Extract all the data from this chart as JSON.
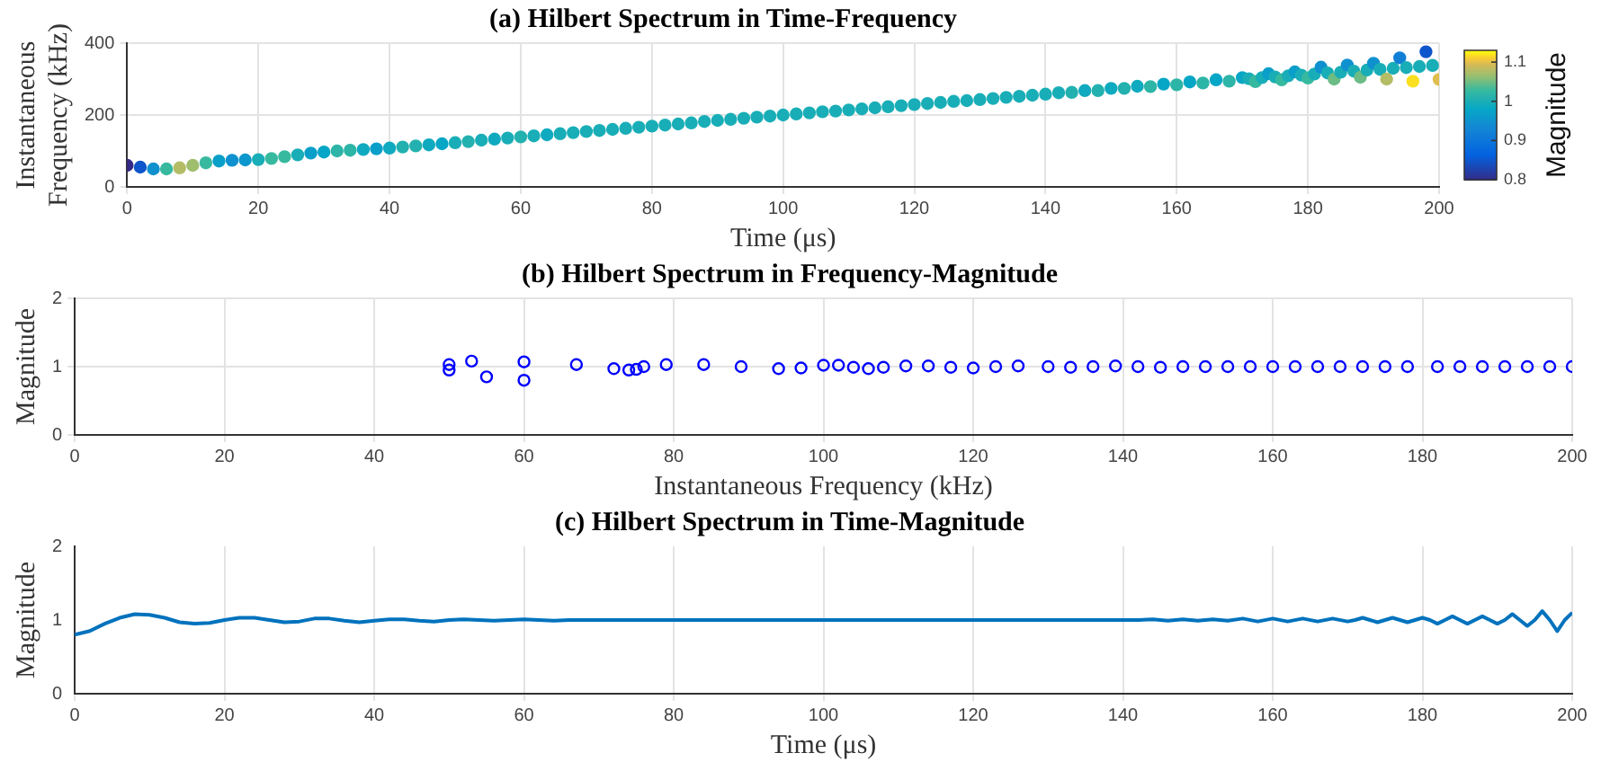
{
  "chart_data": [
    {
      "type": "scatter",
      "title": "(a) Hilbert Spectrum in Time-Frequency",
      "xlabel": "Time (μs)",
      "ylabel": "Instantaneous Frequency (kHz)",
      "clabel": "Magnitude",
      "marker": "circle",
      "grid": true,
      "xlim": [
        0,
        200
      ],
      "xticks": [
        0,
        20,
        40,
        60,
        80,
        100,
        120,
        140,
        160,
        180,
        200
      ],
      "ylim": [
        0,
        400
      ],
      "yticks": [
        0,
        200,
        400
      ],
      "clim": [
        0.8,
        1.13
      ],
      "cticks": [
        0.8,
        0.9,
        1,
        1.1
      ],
      "x": [
        0,
        2,
        4,
        6,
        8,
        10,
        12,
        14,
        16,
        18,
        20,
        22,
        24,
        26,
        28,
        30,
        32,
        34,
        36,
        38,
        40,
        42,
        44,
        46,
        48,
        50,
        52,
        54,
        56,
        58,
        60,
        62,
        64,
        66,
        68,
        70,
        72,
        74,
        76,
        78,
        80,
        82,
        84,
        86,
        88,
        90,
        92,
        94,
        96,
        98,
        100,
        102,
        104,
        106,
        108,
        110,
        112,
        114,
        116,
        118,
        120,
        122,
        124,
        126,
        128,
        130,
        132,
        134,
        136,
        138,
        140,
        142,
        144,
        146,
        148,
        150,
        152,
        154,
        156,
        158,
        160,
        162,
        164,
        166,
        168,
        170,
        171,
        172,
        173,
        174,
        175,
        176,
        177,
        178,
        179,
        180,
        181,
        182,
        183,
        184,
        185,
        186,
        187,
        188,
        189,
        190,
        191,
        192,
        193,
        194,
        195,
        196,
        197,
        198,
        199,
        200
      ],
      "values": [
        60,
        55,
        50,
        50,
        53,
        60,
        67,
        72,
        74,
        75,
        76,
        79,
        84,
        89,
        94,
        97,
        100,
        102,
        104,
        106,
        108,
        111,
        114,
        117,
        120,
        123,
        126,
        130,
        133,
        136,
        139,
        142,
        145,
        148,
        151,
        154,
        157,
        160,
        163,
        166,
        169,
        172,
        175,
        178,
        182,
        185,
        188,
        191,
        194,
        197,
        200,
        203,
        206,
        209,
        211,
        214,
        217,
        220,
        223,
        226,
        229,
        232,
        235,
        238,
        240,
        243,
        246,
        249,
        252,
        255,
        258,
        262,
        263,
        268,
        268,
        274,
        274,
        280,
        279,
        286,
        284,
        292,
        289,
        298,
        294,
        304,
        301,
        293,
        304,
        315,
        306,
        298,
        309,
        320,
        311,
        303,
        314,
        333,
        317,
        300,
        319,
        339,
        322,
        305,
        325,
        344,
        327,
        300,
        330,
        359,
        332,
        294,
        335,
        376,
        338,
        299
      ],
      "cvalues": [
        0.8,
        0.85,
        0.95,
        1.03,
        1.08,
        1.07,
        1.03,
        0.97,
        0.95,
        0.96,
        1.0,
        1.03,
        1.03,
        1.0,
        0.97,
        0.98,
        1.02,
        1.02,
        0.99,
        0.97,
        0.99,
        1.01,
        1.01,
        0.99,
        0.98,
        1.0,
        1.01,
        1.0,
        0.99,
        1.0,
        1.01,
        1.0,
        0.99,
        1.0,
        1.0,
        1.0,
        1.0,
        1.0,
        1.0,
        1.0,
        1.0,
        1.0,
        1.0,
        1.0,
        1.0,
        1.0,
        1.0,
        1.0,
        1.0,
        1.0,
        1.0,
        1.0,
        1.0,
        1.0,
        1.0,
        1.0,
        1.0,
        1.0,
        1.0,
        1.0,
        1.0,
        1.0,
        1.0,
        1.0,
        1.0,
        1.0,
        1.0,
        1.0,
        1.0,
        1.0,
        1.0,
        1.0,
        1.01,
        0.99,
        1.01,
        0.99,
        1.01,
        0.99,
        1.02,
        0.98,
        1.02,
        0.98,
        1.02,
        0.98,
        1.02,
        0.98,
        1.0,
        1.03,
        1.0,
        0.97,
        1.0,
        1.03,
        1.0,
        0.97,
        1.0,
        1.03,
        1.0,
        0.95,
        1.0,
        1.05,
        1.0,
        0.95,
        1.0,
        1.05,
        1.0,
        0.95,
        1.0,
        1.08,
        1.0,
        0.92,
        1.0,
        1.12,
        1.0,
        0.85,
        1.0,
        1.1
      ]
    },
    {
      "type": "scatter",
      "title": "(b) Hilbert Spectrum in Frequency-Magnitude",
      "xlabel": "Instantaneous Frequency (kHz)",
      "ylabel": "Magnitude",
      "marker": "circle",
      "grid": true,
      "color": "#0000ff",
      "xlim": [
        0,
        200
      ],
      "xticks": [
        0,
        20,
        40,
        60,
        80,
        100,
        120,
        140,
        160,
        180,
        200
      ],
      "ylim": [
        0,
        2
      ],
      "yticks": [
        0,
        1,
        2
      ],
      "x": [
        60,
        55,
        50,
        50,
        53,
        60,
        67,
        72,
        74,
        75,
        76,
        79,
        84,
        89,
        94,
        97,
        100,
        102,
        104,
        106,
        108,
        111,
        114,
        117,
        120,
        123,
        126,
        130,
        133,
        136,
        139,
        142,
        145,
        148,
        151,
        154,
        157,
        160,
        163,
        166,
        169,
        172,
        175,
        178,
        182,
        185,
        188,
        191,
        194,
        197,
        200
      ],
      "values": [
        0.8,
        0.85,
        0.95,
        1.03,
        1.08,
        1.07,
        1.03,
        0.97,
        0.95,
        0.96,
        1.0,
        1.03,
        1.03,
        1.0,
        0.97,
        0.98,
        1.02,
        1.02,
        0.99,
        0.97,
        0.99,
        1.01,
        1.01,
        0.99,
        0.98,
        1.0,
        1.01,
        1.0,
        0.99,
        1.0,
        1.01,
        1.0,
        0.99,
        1.0,
        1.0,
        1.0,
        1.0,
        1.0,
        1.0,
        1.0,
        1.0,
        1.0,
        1.0,
        1.0,
        1.0,
        1.0,
        1.0,
        1.0,
        1.0,
        1.0,
        1.0
      ]
    },
    {
      "type": "line",
      "title": "(c) Hilbert Spectrum in Time-Magnitude",
      "xlabel": "Time (μs)",
      "ylabel": "Magnitude",
      "marker": "none",
      "grid": "x",
      "color": "#0072bd",
      "xlim": [
        0,
        200
      ],
      "xticks": [
        0,
        20,
        40,
        60,
        80,
        100,
        120,
        140,
        160,
        180,
        200
      ],
      "ylim": [
        0,
        2
      ],
      "yticks": [
        0,
        1,
        2
      ],
      "x": [
        0,
        2,
        4,
        6,
        8,
        10,
        12,
        14,
        16,
        18,
        20,
        22,
        24,
        26,
        28,
        30,
        32,
        34,
        36,
        38,
        40,
        42,
        44,
        46,
        48,
        50,
        52,
        54,
        56,
        58,
        60,
        62,
        64,
        66,
        68,
        70,
        72,
        74,
        76,
        78,
        80,
        82,
        84,
        86,
        88,
        90,
        92,
        94,
        96,
        98,
        100,
        102,
        104,
        106,
        108,
        110,
        112,
        114,
        116,
        118,
        120,
        122,
        124,
        126,
        128,
        130,
        132,
        134,
        136,
        138,
        140,
        142,
        144,
        146,
        148,
        150,
        152,
        154,
        156,
        158,
        160,
        162,
        164,
        166,
        168,
        170,
        171,
        172,
        173,
        174,
        175,
        176,
        177,
        178,
        179,
        180,
        181,
        182,
        183,
        184,
        185,
        186,
        187,
        188,
        189,
        190,
        191,
        192,
        193,
        194,
        195,
        196,
        197,
        198,
        199,
        200
      ],
      "values": [
        0.8,
        0.85,
        0.95,
        1.03,
        1.08,
        1.07,
        1.03,
        0.97,
        0.95,
        0.96,
        1.0,
        1.03,
        1.03,
        1.0,
        0.97,
        0.98,
        1.02,
        1.02,
        0.99,
        0.97,
        0.99,
        1.01,
        1.01,
        0.99,
        0.98,
        1.0,
        1.01,
        1.0,
        0.99,
        1.0,
        1.01,
        1.0,
        0.99,
        1.0,
        1.0,
        1.0,
        1.0,
        1.0,
        1.0,
        1.0,
        1.0,
        1.0,
        1.0,
        1.0,
        1.0,
        1.0,
        1.0,
        1.0,
        1.0,
        1.0,
        1.0,
        1.0,
        1.0,
        1.0,
        1.0,
        1.0,
        1.0,
        1.0,
        1.0,
        1.0,
        1.0,
        1.0,
        1.0,
        1.0,
        1.0,
        1.0,
        1.0,
        1.0,
        1.0,
        1.0,
        1.0,
        1.0,
        1.01,
        0.99,
        1.01,
        0.99,
        1.01,
        0.99,
        1.02,
        0.98,
        1.02,
        0.98,
        1.02,
        0.98,
        1.02,
        0.98,
        1.0,
        1.03,
        1.0,
        0.97,
        1.0,
        1.03,
        1.0,
        0.97,
        1.0,
        1.03,
        1.0,
        0.95,
        1.0,
        1.05,
        1.0,
        0.95,
        1.0,
        1.05,
        1.0,
        0.95,
        1.0,
        1.08,
        1.0,
        0.92,
        1.0,
        1.12,
        1.0,
        0.85,
        1.0,
        1.1
      ]
    }
  ]
}
